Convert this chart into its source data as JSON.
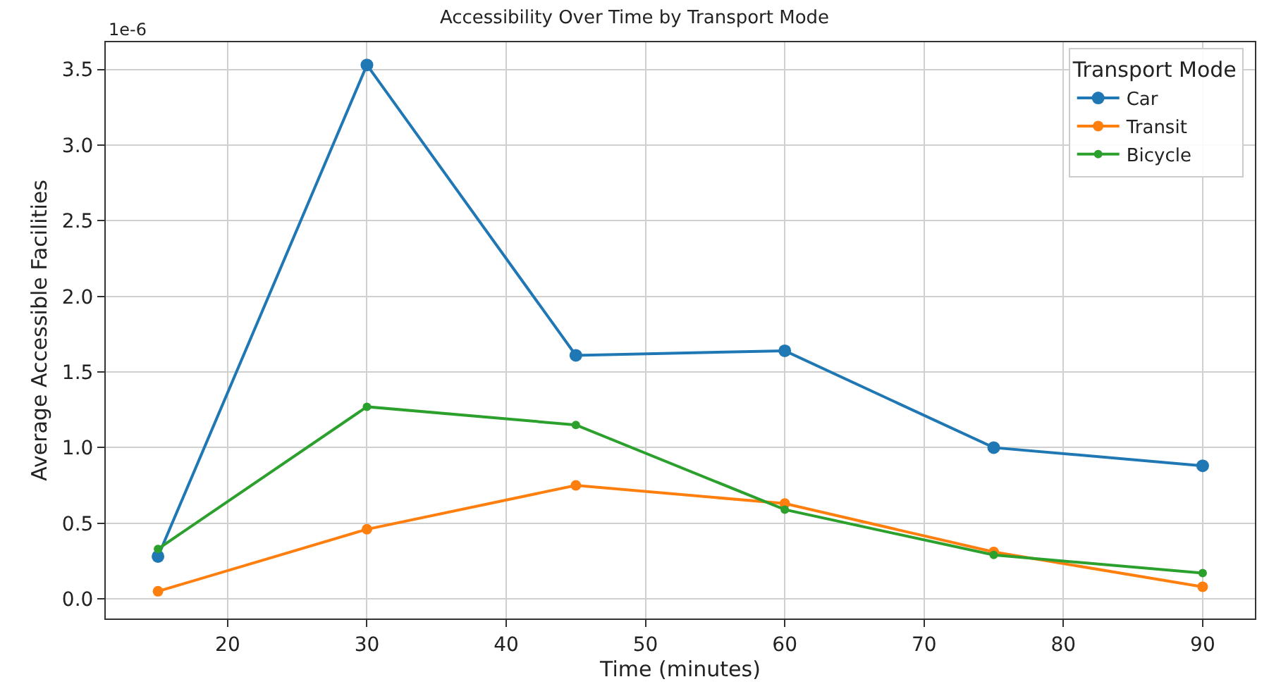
{
  "chart_data": {
    "type": "line",
    "title": "Accessibility Over Time by Transport Mode",
    "xlabel": "Time (minutes)",
    "ylabel": "Average Accessible Facilities",
    "legend_title": "Transport Mode",
    "x": [
      15,
      30,
      45,
      60,
      75,
      90
    ],
    "series": [
      {
        "name": "Car",
        "color": "#1f77b4",
        "values": [
          0.28,
          3.53,
          1.61,
          1.64,
          1.0,
          0.88
        ]
      },
      {
        "name": "Transit",
        "color": "#ff7f0e",
        "values": [
          0.05,
          0.46,
          0.75,
          0.63,
          0.31,
          0.08
        ]
      },
      {
        "name": "Bicycle",
        "color": "#2ca02c",
        "values": [
          0.33,
          1.27,
          1.15,
          0.59,
          0.29,
          0.17
        ]
      }
    ],
    "annotations": [
      "1e-6"
    ],
    "xlim": [
      11.25,
      93.75
    ],
    "xticks": [
      20,
      30,
      40,
      50,
      60,
      70,
      80,
      90
    ],
    "ylim": [
      -0.13,
      3.68
    ],
    "yticks": [
      {
        "value": 0,
        "label": "0.0"
      },
      0.5,
      {
        "value": 1,
        "label": "1.0"
      },
      1.5,
      {
        "value": 2,
        "label": "2.0"
      },
      2.5,
      {
        "value": 3,
        "label": "3.0"
      },
      3.5
    ],
    "grid": true,
    "legend": "top right",
    "marker": "circle",
    "line_style": "solid"
  }
}
